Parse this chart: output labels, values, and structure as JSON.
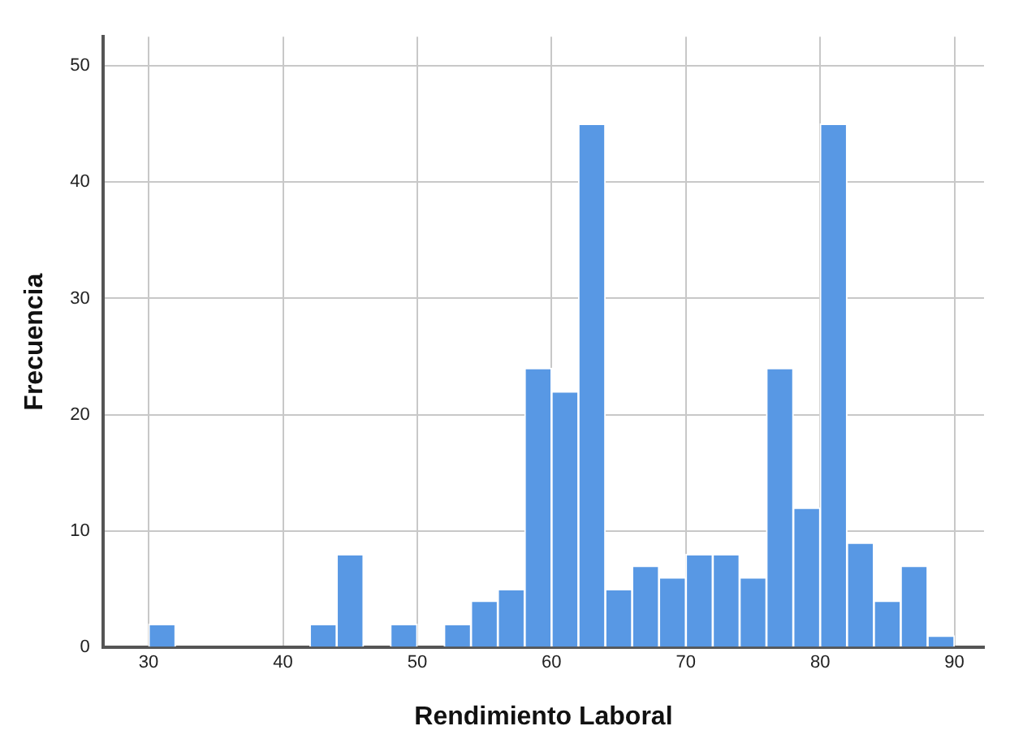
{
  "chart_data": {
    "type": "histogram",
    "xlabel": "Rendimiento Laboral",
    "ylabel": "Frecuencia",
    "bins": [
      30,
      32,
      34,
      36,
      38,
      40,
      42,
      44,
      46,
      48,
      50,
      52,
      54,
      56,
      58,
      60,
      62,
      64,
      66,
      68,
      70,
      72,
      74,
      76,
      78,
      80,
      82,
      84,
      86,
      88,
      90
    ],
    "values": [
      2,
      0,
      0,
      0,
      0,
      0,
      2,
      8,
      0,
      2,
      0,
      2,
      4,
      5,
      24,
      22,
      45,
      5,
      7,
      6,
      8,
      8,
      6,
      24,
      12,
      45,
      9,
      4,
      7,
      1
    ],
    "color": "#5898e4",
    "xlim": [
      26.6,
      92.2
    ],
    "xticks": [
      30,
      40,
      50,
      60,
      70,
      80,
      90
    ],
    "ylim": [
      0,
      52.5
    ],
    "yticks": [
      0,
      10,
      20,
      30,
      40,
      50
    ],
    "grid": true,
    "legend": false
  }
}
